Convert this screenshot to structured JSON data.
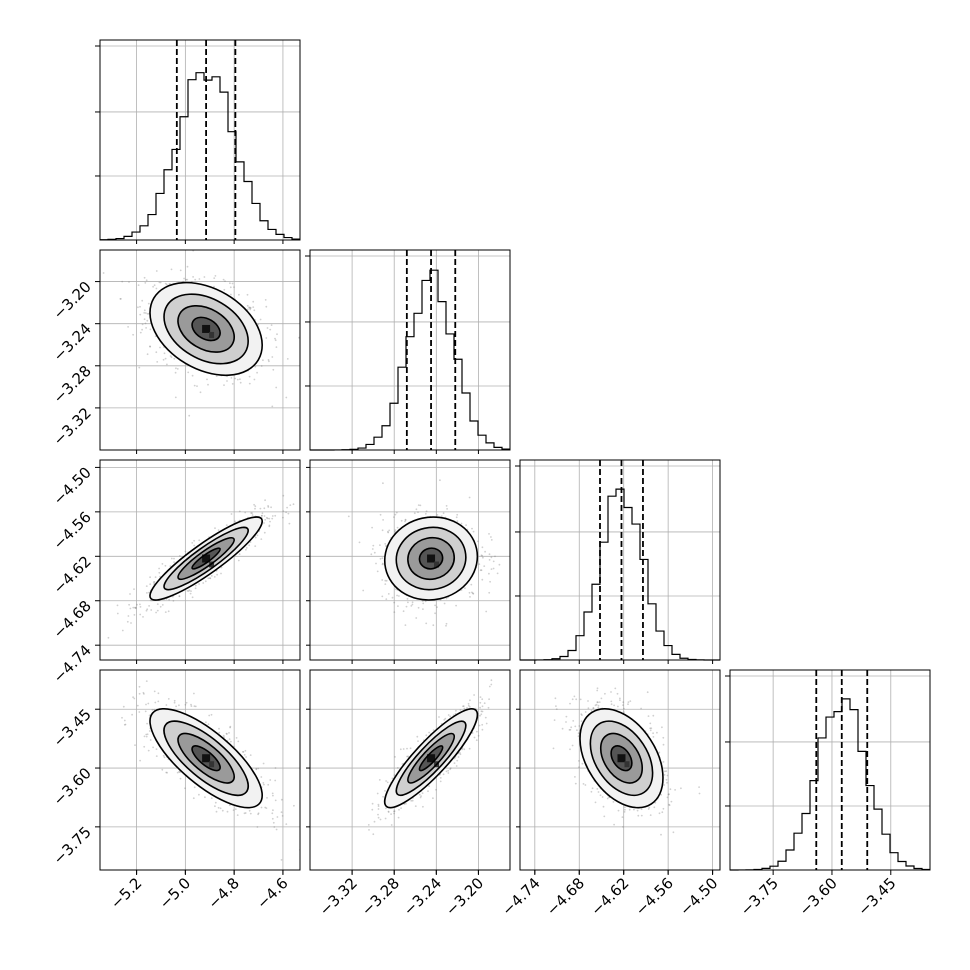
{
  "chart_data": {
    "type": "corner",
    "parameters": [
      {
        "ticks": [
          -5.2,
          -5.0,
          -4.8,
          -4.6
        ],
        "tick_labels": [
          "−5.2",
          "−5.0",
          "−4.8",
          "−4.6"
        ],
        "range": [
          -5.35,
          -4.53
        ],
        "mean": -4.915,
        "std": 0.115,
        "quantiles": [
          -5.035,
          -4.915,
          -4.795
        ],
        "hist_ticks": [
          0.33,
          0.66,
          1.0
        ]
      },
      {
        "ticks": [
          -3.32,
          -3.28,
          -3.24,
          -3.2
        ],
        "tick_labels": [
          "−3.32",
          "−3.28",
          "−3.24",
          "−3.20"
        ],
        "range": [
          -3.36,
          -3.17
        ],
        "mean": -3.245,
        "std": 0.022,
        "quantiles": [
          -3.268,
          -3.245,
          -3.222
        ],
        "hist_ticks": [
          0.33,
          0.66,
          1.0
        ]
      },
      {
        "ticks": [
          -4.74,
          -4.68,
          -4.62,
          -4.56,
          -4.5
        ],
        "tick_labels": [
          "−4.74",
          "−4.68",
          "−4.62",
          "−4.56",
          "−4.50"
        ],
        "range": [
          -4.76,
          -4.49
        ],
        "mean": -4.623,
        "std": 0.028,
        "quantiles": [
          -4.652,
          -4.623,
          -4.594
        ],
        "hist_ticks": [
          0.33,
          0.66,
          1.0
        ]
      },
      {
        "ticks": [
          -3.75,
          -3.6,
          -3.45
        ],
        "tick_labels": [
          "−3.75",
          "−3.60",
          "−3.45"
        ],
        "range": [
          -3.86,
          -3.35
        ],
        "mean": -3.575,
        "std": 0.063,
        "quantiles": [
          -3.64,
          -3.575,
          -3.51
        ],
        "hist_ticks": [
          0.33,
          0.66,
          1.0
        ]
      }
    ],
    "correlations": [
      [
        1,
        -0.35,
        0.9,
        -0.75
      ],
      [
        -0.35,
        1,
        0.05,
        0.88
      ],
      [
        0.9,
        0.05,
        1,
        -0.4
      ],
      [
        -0.75,
        0.88,
        -0.4,
        1
      ]
    ],
    "contour_levels_sigma": [
      0.5,
      1.0,
      1.5,
      2.0
    ],
    "grid": true
  }
}
